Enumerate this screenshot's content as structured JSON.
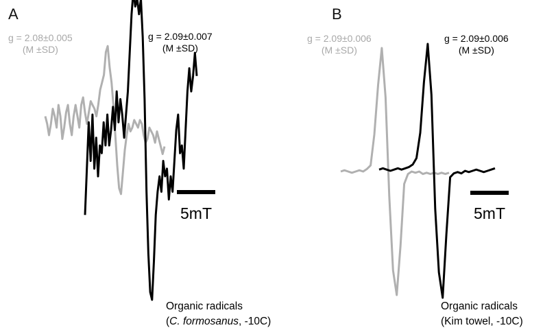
{
  "panels": [
    {
      "letter": "A",
      "labels": [
        {
          "line1": "g = 2.08±0.005",
          "line2": "(M ±SD)",
          "color": "#a8a8a8"
        },
        {
          "line1": "g = 2.09±0.007",
          "line2": "(M ±SD)",
          "color": "#000000"
        }
      ],
      "scale_bar": "5mT",
      "caption": {
        "line1": "Organic radicals",
        "line2_open": "(",
        "line2_italic": "C. formosanus",
        "line2_rest": ", -10C)"
      }
    },
    {
      "letter": "B",
      "labels": [
        {
          "line1": "g = 2.09±0.006",
          "line2": "(M ±SD)",
          "color": "#a8a8a8"
        },
        {
          "line1": "g = 2.09±0.006",
          "line2": "(M ±SD)",
          "color": "#000000"
        }
      ],
      "scale_bar": "5mT",
      "caption": {
        "line1": "Organic radicals",
        "line2_open": "(",
        "line2_italic": "Kim towel",
        "line2_rest": ", -10C)"
      }
    }
  ],
  "chart_data": [
    {
      "type": "line",
      "title": "",
      "xlabel": "",
      "ylabel": "",
      "grid": false,
      "legend": "none",
      "series": [
        {
          "color": "#b0b0b0",
          "values": [
            0.05,
            -0.05,
            -0.2,
            -0.05,
            0.15,
            0.05,
            -0.1,
            0.2,
            0.05,
            -0.25,
            -0.1,
            0.1,
            0.2,
            -0.05,
            -0.2,
            0.05,
            0.2,
            0.05,
            -0.1,
            0.2,
            0.3,
            0.1,
            -0.05,
            0.1,
            0.25,
            0.2,
            0.15,
            0.05,
            0.2,
            0.4,
            0.5,
            0.6,
            0.9,
            0.98,
            0.7,
            0.5,
            0.2,
            -0.2,
            -0.6,
            -0.9,
            -0.98,
            -0.7,
            -0.4,
            -0.2,
            -0.05,
            -0.15,
            -0.1,
            0.0,
            -0.05,
            -0.1,
            0.0,
            -0.05,
            -0.2,
            -0.3,
            -0.25,
            -0.1,
            -0.15,
            -0.2,
            -0.3,
            -0.15,
            -0.25,
            -0.35,
            -0.45,
            -0.35
          ]
        },
        {
          "color": "#000000",
          "values": [
            -0.45,
            -0.15,
            0.15,
            -0.1,
            0.2,
            -0.15,
            0.05,
            -0.2,
            0.0,
            -0.05,
            0.15,
            0.0,
            0.2,
            0.0,
            0.1,
            0.25,
            0.1,
            0.35,
            0.15,
            0.3,
            0.2,
            0.05,
            0.2,
            0.35,
            0.6,
            0.85,
            1.0,
            0.9,
            0.95,
            0.85,
            0.95,
            0.7,
            0.3,
            -0.3,
            -0.7,
            -0.95,
            -1.0,
            -0.75,
            -0.45,
            -0.3,
            -0.2,
            -0.3,
            -0.1,
            -0.2,
            -0.15,
            -0.35,
            -0.2,
            -0.3,
            -0.1,
            0.1,
            0.2,
            -0.05,
            0.0,
            -0.15,
            0.1,
            0.35,
            0.5,
            0.35,
            0.45,
            0.6,
            0.45
          ]
        }
      ]
    },
    {
      "type": "line",
      "title": "",
      "xlabel": "",
      "ylabel": "",
      "grid": false,
      "legend": "none",
      "series": [
        {
          "color": "#b0b0b0",
          "values": [
            0.0,
            0.01,
            0.0,
            -0.01,
            0.0,
            0.01,
            0.0,
            0.02,
            0.05,
            0.3,
            0.7,
            1.0,
            0.6,
            -0.2,
            -0.8,
            -1.0,
            -0.6,
            -0.1,
            -0.02,
            0.0,
            -0.01,
            0.0,
            -0.02,
            -0.01,
            -0.02,
            -0.01,
            -0.02,
            -0.01,
            -0.02,
            -0.01
          ]
        },
        {
          "color": "#000000",
          "values": [
            0.01,
            0.02,
            0.01,
            0.0,
            0.01,
            0.02,
            0.01,
            0.02,
            0.03,
            0.05,
            0.1,
            0.3,
            0.7,
            1.0,
            0.6,
            -0.3,
            -0.8,
            -1.0,
            -0.5,
            -0.05,
            -0.02,
            -0.01,
            -0.02,
            0.0,
            -0.01,
            0.0,
            0.01,
            0.0,
            -0.01,
            0.0,
            0.01,
            0.02
          ]
        }
      ]
    }
  ]
}
